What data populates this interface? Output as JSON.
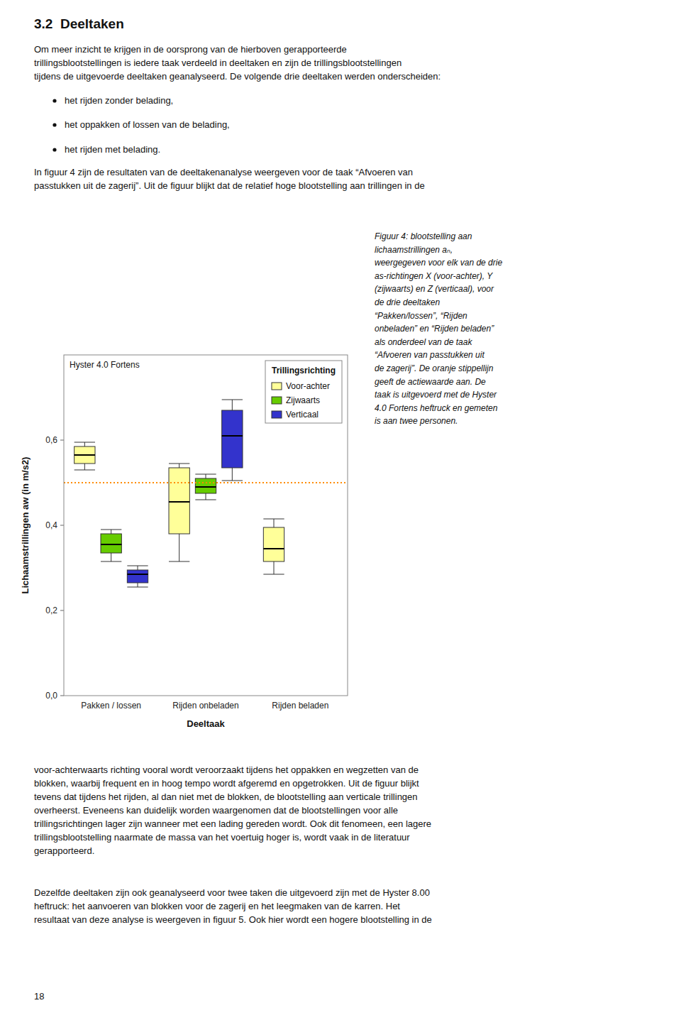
{
  "heading": "3.2  Deeltaken",
  "intro": [
    "Om meer inzicht te krijgen in de oorsprong van de hierboven gerapporteerde",
    "trillingsblootstellingen is iedere taak verdeeld in deeltaken en zijn de trillingsblootstellingen",
    "tijdens de uitgevoerde deeltaken geanalyseerd. De volgende drie deeltaken werden onderscheiden:"
  ],
  "bullets": [
    "het rijden zonder belading,",
    "het oppakken of lossen van de belading,",
    "het rijden met belading."
  ],
  "paragraph": [
    "In figuur 4 zijn de resultaten van de deeltakenanalyse weergeven voor de taak “Afvoeren van",
    "passtukken uit de zagerij”. Uit de figuur blijkt dat de relatief hoge blootstelling aan trillingen in de"
  ],
  "caption": [
    "Figuur 4: blootstelling aan",
    "lichaamstrillingen aₙ,",
    "weergegeven voor elk van de drie",
    "as-richtingen X (voor-achter), Y",
    "(zijwaarts) en Z (verticaal), voor",
    "de drie deeltaken",
    "“Pakken/lossen”, “Rijden",
    "onbeladen” en “Rijden beladen”",
    "als onderdeel van de taak",
    "“Afvoeren van passtukken uit",
    "de zagerij”. De oranje stippellijn",
    "geeft de actiewaarde aan. De",
    "taak is uitgevoerd met de Hyster",
    "4.0 Fortens heftruck en gemeten",
    "is aan twee personen."
  ],
  "body": [
    [
      "voor-achterwaarts richting vooral wordt veroorzaakt tijdens het oppakken en wegzetten van de",
      "blokken, waarbij frequent en in hoog tempo wordt afgeremd en opgetrokken. Uit de figuur blijkt",
      "tevens dat tijdens het rijden, al dan niet met de blokken, de blootstelling aan verticale trillingen",
      "overheerst. Eveneens kan duidelijk worden waargenomen dat de blootstellingen voor alle",
      "trillingsrichtingen lager zijn wanneer met een lading gereden wordt. Ook dit fenomeen, een lagere",
      "trillingsblootstelling naarmate de massa van het voertuig hoger is, wordt vaak in de literatuur",
      "gerapporteerd."
    ],
    [
      "Dezelfde deeltaken zijn ook geanalyseerd voor twee taken die uitgevoerd zijn met de Hyster 8.00",
      "heftruck: het aanvoeren van blokken voor de zagerij en het leegmaken van de karren. Het",
      "resultaat van deze analyse is weergeven in figuur 5. Ook hier wordt een hogere blootstelling in de"
    ]
  ],
  "page_number": "18",
  "chart_data": {
    "type": "box",
    "title": "Hyster 4.0 Fortens",
    "xlabel": "Deeltaak",
    "ylabel": "Lichaamstrillingen aw (in m/s2)",
    "categories": [
      "Pakken / lossen",
      "Rijden onbeladen",
      "Rijden beladen"
    ],
    "series": [
      {
        "name": "Voor-achter",
        "color": "#FFFF99",
        "values": [
          {
            "q1": 0.545,
            "median": 0.565,
            "q3": 0.585,
            "whisker_low": 0.53,
            "whisker_high": 0.595
          },
          {
            "q1": 0.38,
            "median": 0.455,
            "q3": 0.535,
            "whisker_low": 0.315,
            "whisker_high": 0.545
          },
          {
            "q1": 0.315,
            "median": 0.345,
            "q3": 0.395,
            "whisker_low": 0.285,
            "whisker_high": 0.415
          }
        ]
      },
      {
        "name": "Zijwaarts",
        "color": "#66CC00",
        "values": [
          {
            "q1": 0.335,
            "median": 0.355,
            "q3": 0.38,
            "whisker_low": 0.315,
            "whisker_high": 0.39
          },
          {
            "q1": 0.475,
            "median": 0.49,
            "q3": 0.51,
            "whisker_low": 0.46,
            "whisker_high": 0.52
          },
          null
        ]
      },
      {
        "name": "Verticaal",
        "color": "#3333CC",
        "values": [
          {
            "q1": 0.265,
            "median": 0.285,
            "q3": 0.295,
            "whisker_low": 0.255,
            "whisker_high": 0.305
          },
          {
            "q1": 0.535,
            "median": 0.61,
            "q3": 0.67,
            "whisker_low": 0.505,
            "whisker_high": 0.695
          },
          null
        ]
      }
    ],
    "reference_lines": [
      {
        "value": 0.5,
        "color": "#FF8C00",
        "line_style": "dotted"
      }
    ],
    "ylim": [
      0.0,
      0.8
    ],
    "yticks": [
      {
        "value": 0.0,
        "label": "0,0"
      },
      {
        "value": 0.2,
        "label": "0,2"
      },
      {
        "value": 0.4,
        "label": "0,4"
      },
      {
        "value": 0.6,
        "label": "0,6"
      }
    ],
    "grid": false,
    "legend": "upper right",
    "legend_title": "Trillingsrichting"
  }
}
